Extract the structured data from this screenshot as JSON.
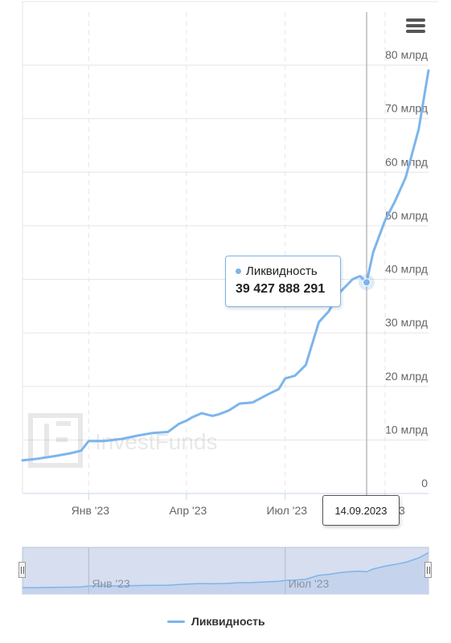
{
  "menu": {
    "icon": "hamburger-menu-icon"
  },
  "watermark": "InvestFunds",
  "tooltip": {
    "series_name": "Ликвидность",
    "value_text": "39 427 888 291"
  },
  "crosshair": {
    "date_label": "14.09.2023"
  },
  "legend": {
    "label": "Ликвидность",
    "color": "#7cb5ec"
  },
  "navigator": {
    "labels": [
      "Янв '23",
      "Июл '23"
    ]
  },
  "chart_data": {
    "type": "line",
    "series": [
      {
        "name": "Ликвидность",
        "color": "#7cb5ec",
        "x": [
          "2022-11-01",
          "2022-11-15",
          "2022-12-01",
          "2022-12-15",
          "2022-12-25",
          "2023-01-01",
          "2023-01-15",
          "2023-02-01",
          "2023-02-15",
          "2023-03-01",
          "2023-03-15",
          "2023-03-25",
          "2023-04-01",
          "2023-04-07",
          "2023-04-15",
          "2023-04-25",
          "2023-05-01",
          "2023-05-10",
          "2023-05-20",
          "2023-06-01",
          "2023-06-15",
          "2023-06-25",
          "2023-07-01",
          "2023-07-10",
          "2023-07-20",
          "2023-08-01",
          "2023-08-10",
          "2023-08-20",
          "2023-09-01",
          "2023-09-08",
          "2023-09-14",
          "2023-09-20",
          "2023-10-01",
          "2023-10-10",
          "2023-10-20",
          "2023-11-01",
          "2023-11-10"
        ],
        "y": [
          6.2,
          6.5,
          7.0,
          7.5,
          8.0,
          9.8,
          9.8,
          10.2,
          10.8,
          11.3,
          11.5,
          13.0,
          13.6,
          14.3,
          15.0,
          14.5,
          14.8,
          15.5,
          16.8,
          17.0,
          18.5,
          19.5,
          21.5,
          22.0,
          24.0,
          32.0,
          34.0,
          37.5,
          40.0,
          40.6,
          39.4,
          45.0,
          51.0,
          54.5,
          59.0,
          68.0,
          79.0
        ]
      }
    ],
    "xlim": [
      "2022-11-01",
      "2023-11-10"
    ],
    "x_ticks": [
      "2023-01-01",
      "2023-04-01",
      "2023-07-01",
      "2023-10-01"
    ],
    "x_tick_labels": [
      "Янв '23",
      "Апр '23",
      "Июл '23",
      "Окт '23"
    ],
    "ylim": [
      0,
      80
    ],
    "y_ticks": [
      0,
      10,
      20,
      30,
      40,
      50,
      60,
      70,
      80
    ],
    "y_tick_labels": [
      "0",
      "10 млрд",
      "20 млрд",
      "30 млрд",
      "40 млрд",
      "50 млрд",
      "60 млрд",
      "70 млрд",
      "80 млрд"
    ],
    "unit": "млрд",
    "grid": true,
    "highlighted_point": {
      "x": "2023-09-14",
      "y": 39.427888291
    }
  }
}
